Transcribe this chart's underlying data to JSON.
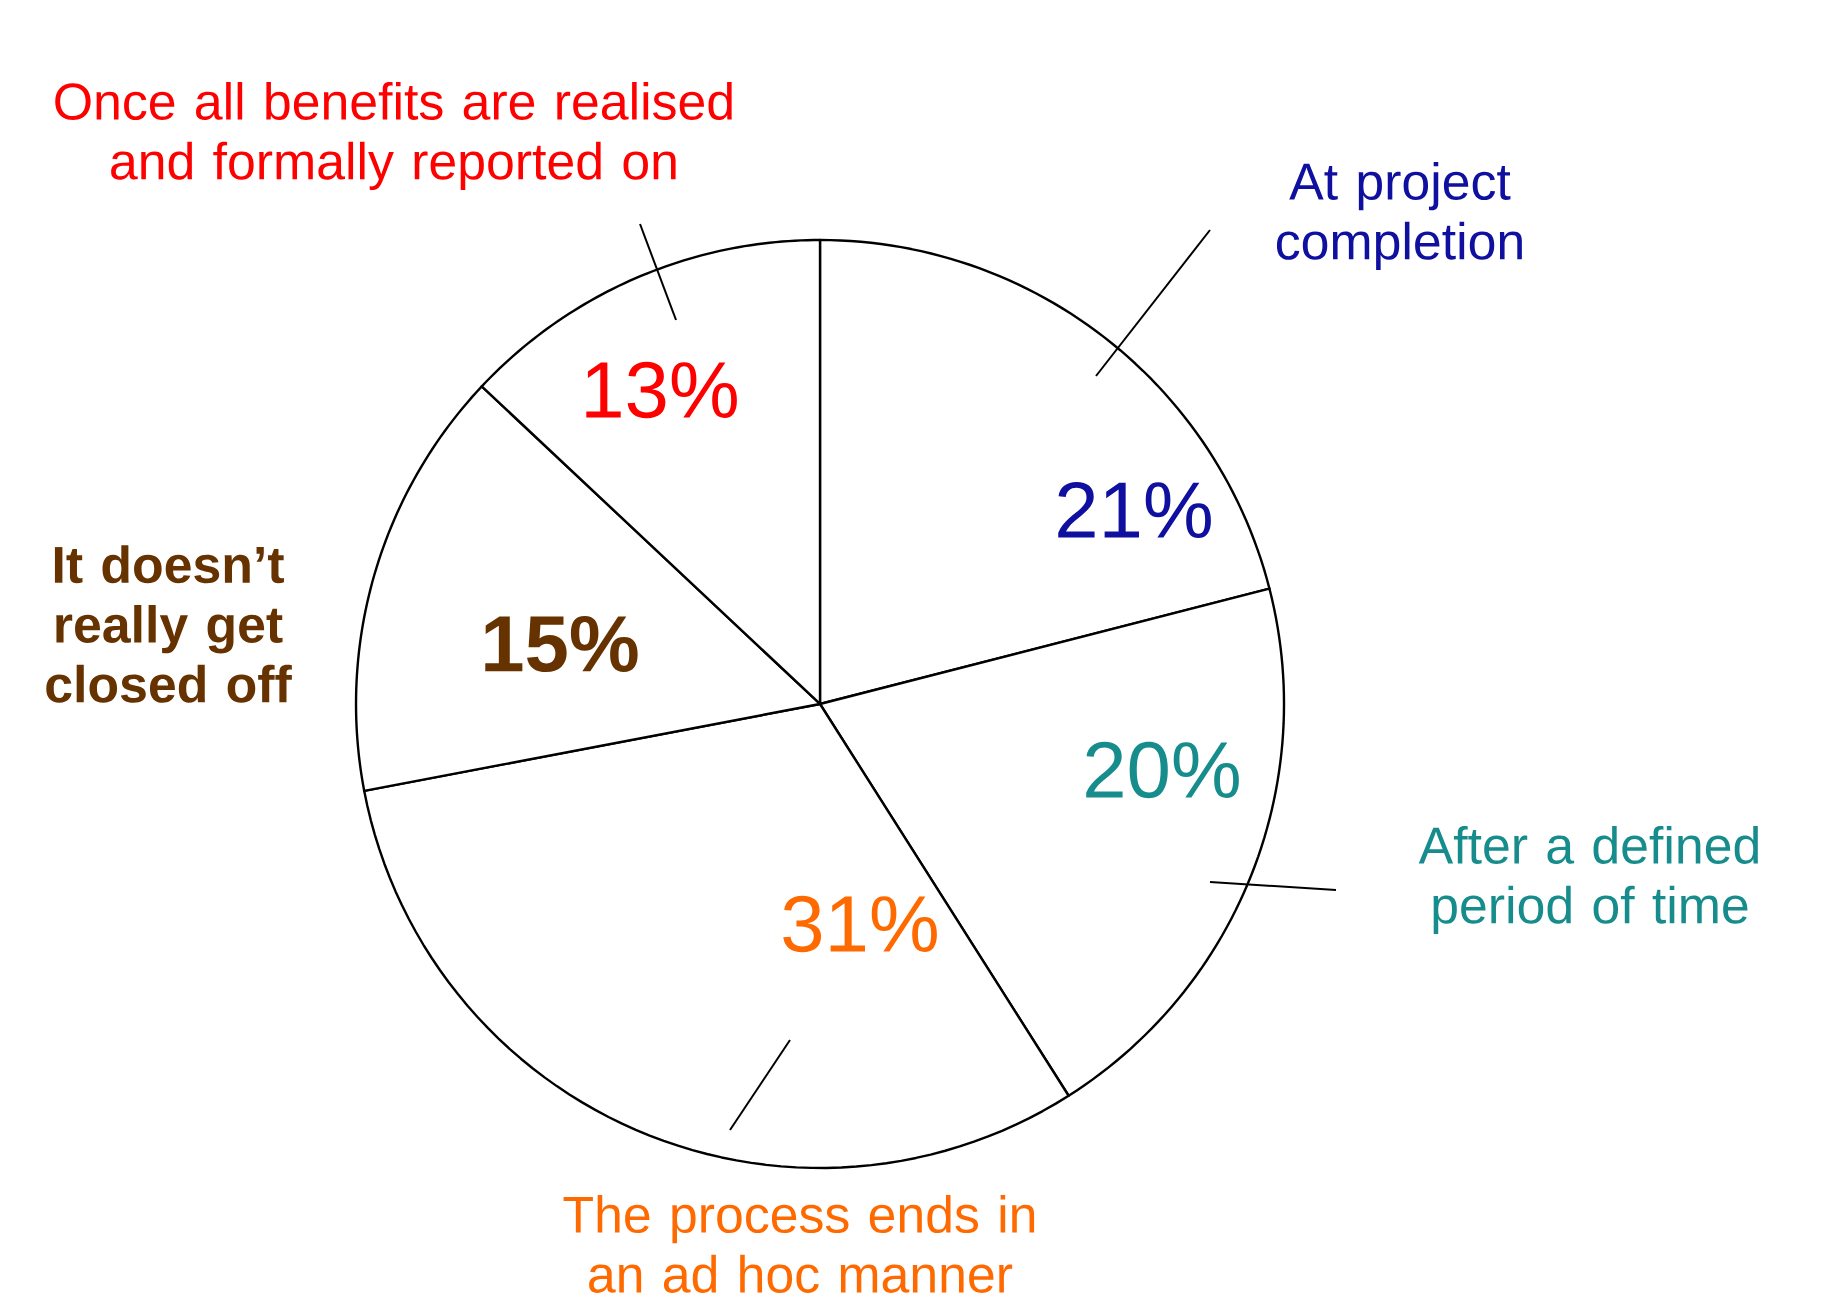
{
  "chart_data": {
    "type": "pie",
    "categories": [
      "At project completion",
      "After a defined period of time",
      "The process ends in an ad hoc manner",
      "It doesn’t really get closed off",
      "Once all benefits are realised and formally reported on"
    ],
    "values": [
      21,
      20,
      31,
      15,
      13
    ],
    "value_labels": [
      "21%",
      "20%",
      "31%",
      "15%",
      "13%"
    ],
    "colors": [
      "#ffffff",
      "#ffffff",
      "#ffffff",
      "#ffffff",
      "#ffffff"
    ]
  }
}
